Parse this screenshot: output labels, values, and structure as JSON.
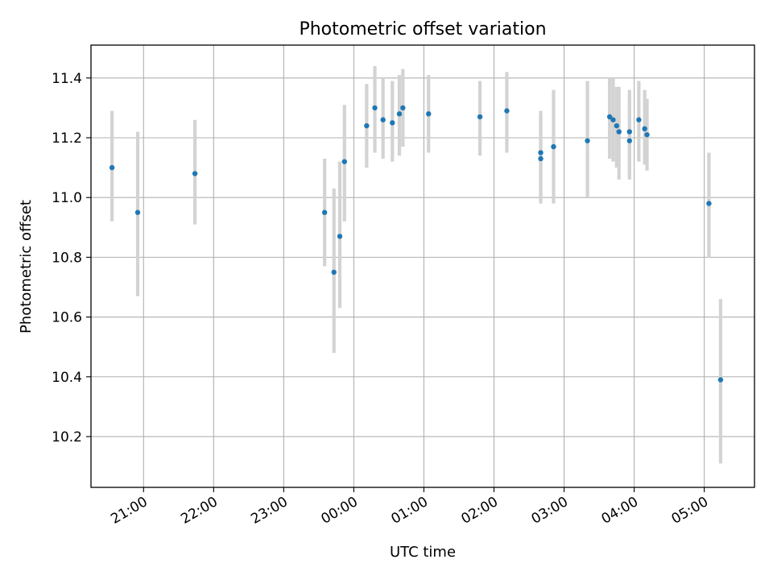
{
  "chart_data": {
    "type": "scatter",
    "title": "Photometric offset variation",
    "xlabel": "UTC time",
    "ylabel": "Photometric offset",
    "x_unit": "UTC time (HH:MM, night spanning midnight)",
    "xlim": [
      "20:15",
      "05:43"
    ],
    "ylim": [
      10.03,
      11.51
    ],
    "grid": true,
    "x_ticks": [
      "21:00",
      "22:00",
      "23:00",
      "00:00",
      "01:00",
      "02:00",
      "03:00",
      "04:00",
      "05:00"
    ],
    "y_ticks": [
      10.2,
      10.4,
      10.6,
      10.8,
      11.0,
      11.2,
      11.4
    ],
    "colors": {
      "points": "#1f77b4",
      "errorbars": "#d3d3d3",
      "grid": "#b0b0b0"
    },
    "points": [
      {
        "x": "20:33",
        "y": 11.1,
        "err_low": 10.92,
        "err_high": 11.29
      },
      {
        "x": "20:55",
        "y": 10.95,
        "err_low": 10.67,
        "err_high": 11.22
      },
      {
        "x": "21:44",
        "y": 11.08,
        "err_low": 10.91,
        "err_high": 11.26
      },
      {
        "x": "23:35",
        "y": 10.95,
        "err_low": 10.77,
        "err_high": 11.13
      },
      {
        "x": "23:43",
        "y": 10.75,
        "err_low": 10.48,
        "err_high": 11.03
      },
      {
        "x": "23:48",
        "y": 10.87,
        "err_low": 10.63,
        "err_high": 11.12
      },
      {
        "x": "23:52",
        "y": 11.12,
        "err_low": 10.92,
        "err_high": 11.31
      },
      {
        "x": "00:11",
        "y": 11.24,
        "err_low": 11.1,
        "err_high": 11.38
      },
      {
        "x": "00:18",
        "y": 11.3,
        "err_low": 11.15,
        "err_high": 11.44
      },
      {
        "x": "00:25",
        "y": 11.26,
        "err_low": 11.13,
        "err_high": 11.4
      },
      {
        "x": "00:33",
        "y": 11.25,
        "err_low": 11.12,
        "err_high": 11.39
      },
      {
        "x": "00:39",
        "y": 11.28,
        "err_low": 11.14,
        "err_high": 11.41
      },
      {
        "x": "00:42",
        "y": 11.3,
        "err_low": 11.17,
        "err_high": 11.43
      },
      {
        "x": "01:04",
        "y": 11.28,
        "err_low": 11.15,
        "err_high": 11.41
      },
      {
        "x": "01:48",
        "y": 11.27,
        "err_low": 11.14,
        "err_high": 11.39
      },
      {
        "x": "02:11",
        "y": 11.29,
        "err_low": 11.15,
        "err_high": 11.42
      },
      {
        "x": "02:40",
        "y": 11.15,
        "err_low": 11.0,
        "err_high": 11.29
      },
      {
        "x": "02:40",
        "y": 11.13,
        "err_low": 10.98,
        "err_high": 11.27
      },
      {
        "x": "02:51",
        "y": 11.17,
        "err_low": 10.98,
        "err_high": 11.36
      },
      {
        "x": "03:20",
        "y": 11.19,
        "err_low": 11.0,
        "err_high": 11.39
      },
      {
        "x": "03:39",
        "y": 11.27,
        "err_low": 11.13,
        "err_high": 11.4
      },
      {
        "x": "03:42",
        "y": 11.26,
        "err_low": 11.12,
        "err_high": 11.4
      },
      {
        "x": "03:45",
        "y": 11.24,
        "err_low": 11.1,
        "err_high": 11.37
      },
      {
        "x": "03:47",
        "y": 11.22,
        "err_low": 11.06,
        "err_high": 11.37
      },
      {
        "x": "03:56",
        "y": 11.22,
        "err_low": 11.07,
        "err_high": 11.36
      },
      {
        "x": "03:56",
        "y": 11.19,
        "err_low": 11.06,
        "err_high": 11.33
      },
      {
        "x": "04:04",
        "y": 11.26,
        "err_low": 11.12,
        "err_high": 11.39
      },
      {
        "x": "04:09",
        "y": 11.23,
        "err_low": 11.11,
        "err_high": 11.36
      },
      {
        "x": "04:11",
        "y": 11.21,
        "err_low": 11.09,
        "err_high": 11.33
      },
      {
        "x": "05:04",
        "y": 10.98,
        "err_low": 10.8,
        "err_high": 11.15
      },
      {
        "x": "05:14",
        "y": 10.39,
        "err_low": 10.11,
        "err_high": 10.66
      }
    ]
  }
}
